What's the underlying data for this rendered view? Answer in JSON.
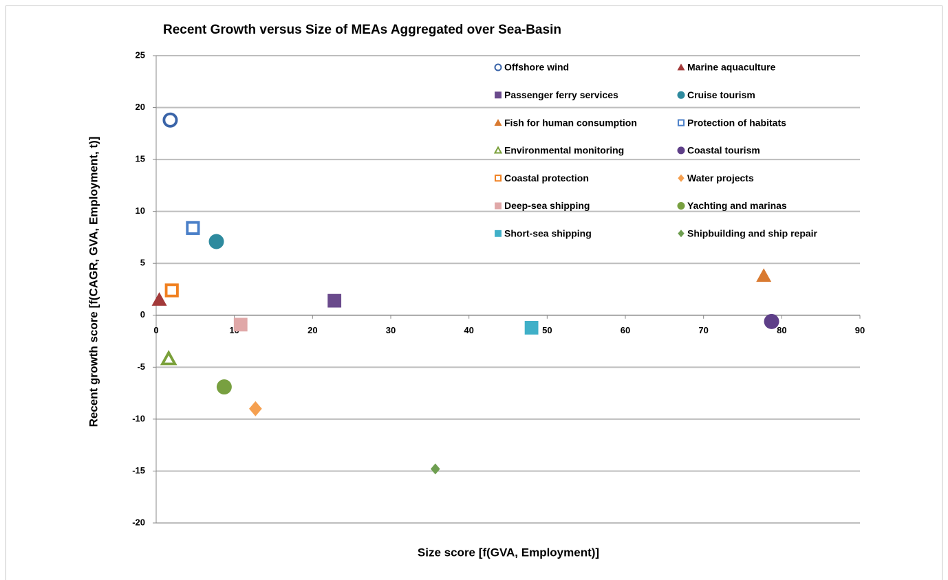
{
  "chart_data": {
    "type": "scatter",
    "title": "Recent Growth versus Size of MEAs Aggregated over Sea-Basin",
    "x_label": "Size score [f(GVA, Employment)]",
    "y_label": "Recent growth score [f(CAGR, GVA, Employment, t)]",
    "xlim": [
      0,
      90
    ],
    "xticks": [
      0,
      10,
      20,
      30,
      40,
      50,
      60,
      70,
      80,
      90
    ],
    "ylim": [
      -20,
      25
    ],
    "yticks": [
      -20,
      -15,
      -10,
      -5,
      0,
      5,
      10,
      15,
      20,
      25
    ],
    "grid": true,
    "legend": "top-right",
    "series": [
      {
        "name": "Offshore wind",
        "color": "#3a64a8",
        "marker": "circle",
        "filled": false,
        "x": [
          1.8
        ],
        "values": [
          18.8
        ]
      },
      {
        "name": "Marine aquaculture",
        "color": "#a33a3a",
        "marker": "triangle",
        "filled": true,
        "x": [
          0.4
        ],
        "values": [
          1.5
        ]
      },
      {
        "name": "Passenger ferry services",
        "color": "#6a4a8c",
        "marker": "square",
        "filled": true,
        "x": [
          22.8
        ],
        "values": [
          1.4
        ]
      },
      {
        "name": "Cruise tourism",
        "color": "#2e8a9e",
        "marker": "circle",
        "filled": true,
        "x": [
          7.7
        ],
        "values": [
          7.1
        ]
      },
      {
        "name": "Fish for human consumption",
        "color": "#d97a30",
        "marker": "triangle",
        "filled": true,
        "x": [
          77.7
        ],
        "values": [
          3.8
        ]
      },
      {
        "name": "Protection of habitats",
        "color": "#4a7fc8",
        "marker": "square",
        "filled": false,
        "x": [
          4.7
        ],
        "values": [
          8.4
        ]
      },
      {
        "name": "Environmental monitoring",
        "color": "#7aa03a",
        "marker": "triangle",
        "filled": false,
        "x": [
          1.6
        ],
        "values": [
          -4.2
        ]
      },
      {
        "name": "Coastal tourism",
        "color": "#5e3f88",
        "marker": "circle",
        "filled": true,
        "x": [
          78.7
        ],
        "values": [
          -0.6
        ]
      },
      {
        "name": "Coastal protection",
        "color": "#f08020",
        "marker": "square",
        "filled": false,
        "x": [
          2.0
        ],
        "values": [
          2.4
        ]
      },
      {
        "name": "Water projects",
        "color": "#f5a050",
        "marker": "diamond",
        "filled": true,
        "x": [
          12.7
        ],
        "values": [
          -9.0
        ]
      },
      {
        "name": "Deep-sea shipping",
        "color": "#e0a8a8",
        "marker": "square",
        "filled": true,
        "x": [
          10.8
        ],
        "values": [
          -0.9
        ]
      },
      {
        "name": "Yachting and marinas",
        "color": "#78a040",
        "marker": "circle",
        "filled": true,
        "x": [
          8.7
        ],
        "values": [
          -6.9
        ]
      },
      {
        "name": "Short-sea shipping",
        "color": "#40b0c8",
        "marker": "square",
        "filled": true,
        "x": [
          48.0
        ],
        "values": [
          -1.2
        ]
      },
      {
        "name": "Shipbuilding and ship repair",
        "color": "#6e9e50",
        "marker": "diamond",
        "filled": true,
        "x": [
          35.7
        ],
        "values": [
          -14.8
        ]
      }
    ]
  }
}
